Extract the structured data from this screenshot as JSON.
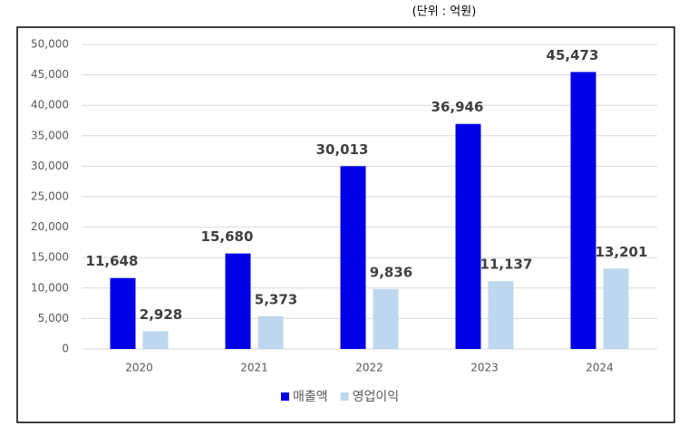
{
  "chart_data": {
    "type": "bar",
    "subtitle": "(단위 : 억원)",
    "categories": [
      "2020",
      "2021",
      "2022",
      "2023",
      "2024"
    ],
    "series": [
      {
        "name": "매출액",
        "color": "#0000e6",
        "values": [
          11648,
          15680,
          30013,
          36946,
          45473
        ],
        "value_labels": [
          "11,648",
          "15,680",
          "30,013",
          "36,946",
          "45,473"
        ]
      },
      {
        "name": "영업이익",
        "color": "#bdd7ee",
        "values": [
          2928,
          5373,
          9836,
          11137,
          13201
        ],
        "value_labels": [
          "2,928",
          "5,373",
          "9,836",
          "11,137",
          "13,201"
        ]
      }
    ],
    "ylim": [
      0,
      50000
    ],
    "yticks": [
      0,
      {
        "value": 5000,
        "label": "5,000"
      },
      {
        "value": 10000,
        "label": "10,000"
      },
      {
        "value": 15000,
        "label": "15,000"
      },
      {
        "value": 20000,
        "label": "20,000"
      },
      {
        "value": 25000,
        "label": "25,000"
      },
      {
        "value": 30000,
        "label": "30,000"
      },
      {
        "value": 35000,
        "label": "35,000"
      },
      {
        "value": 40000,
        "label": "40,000"
      },
      {
        "value": 45000,
        "label": "45,000"
      },
      {
        "value": 50000,
        "label": "50,000"
      }
    ],
    "grid": true,
    "legend": "bottom"
  }
}
